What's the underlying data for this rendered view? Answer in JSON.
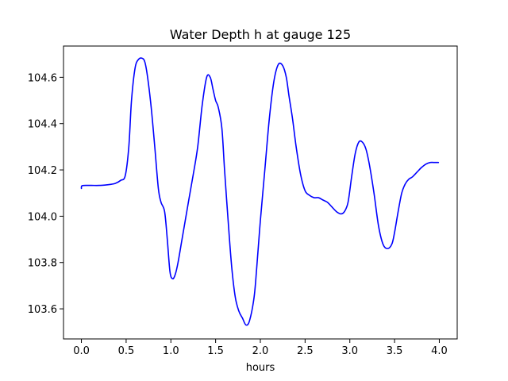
{
  "chart_data": {
    "type": "line",
    "title": "Water Depth h at gauge 125",
    "xlabel": "hours",
    "ylabel": "",
    "xlim": [
      -0.2,
      4.2
    ],
    "ylim": [
      103.47,
      104.735
    ],
    "grid": false,
    "legend": "none",
    "x_ticks": [
      0.0,
      0.5,
      1.0,
      1.5,
      2.0,
      2.5,
      3.0,
      3.5,
      4.0
    ],
    "x_tick_labels": [
      "0.0",
      "0.5",
      "1.0",
      "1.5",
      "2.0",
      "2.5",
      "3.0",
      "3.5",
      "4.0"
    ],
    "y_ticks": [
      103.6,
      103.8,
      104.0,
      104.2,
      104.4,
      104.6
    ],
    "y_tick_labels": [
      "103.6",
      "103.8",
      "104.0",
      "104.2",
      "104.4",
      "104.6"
    ],
    "series": [
      {
        "name": "",
        "color": "#0000ff",
        "x": [
          0.0,
          0.01,
          0.1,
          0.2,
          0.3,
          0.38,
          0.44,
          0.49,
          0.53,
          0.56,
          0.6,
          0.64,
          0.68,
          0.71,
          0.74,
          0.78,
          0.82,
          0.86,
          0.89,
          0.93,
          0.96,
          0.99,
          1.02,
          1.05,
          1.08,
          1.12,
          1.16,
          1.2,
          1.25,
          1.3,
          1.35,
          1.4,
          1.44,
          1.47,
          1.5,
          1.53,
          1.57,
          1.6,
          1.64,
          1.68,
          1.72,
          1.76,
          1.8,
          1.84,
          1.88,
          1.93,
          1.96,
          2.0,
          2.05,
          2.1,
          2.15,
          2.2,
          2.25,
          2.29,
          2.32,
          2.36,
          2.4,
          2.45,
          2.5,
          2.55,
          2.6,
          2.65,
          2.7,
          2.75,
          2.8,
          2.85,
          2.9,
          2.94,
          2.98,
          3.02,
          3.06,
          3.1,
          3.14,
          3.18,
          3.22,
          3.27,
          3.32,
          3.37,
          3.42,
          3.47,
          3.5,
          3.54,
          3.58,
          3.62,
          3.66,
          3.7,
          3.75,
          3.8,
          3.85,
          3.9,
          3.95,
          3.99
        ],
        "values": [
          104.12,
          104.132,
          104.133,
          104.133,
          104.136,
          104.142,
          104.155,
          104.175,
          104.3,
          104.5,
          104.64,
          104.678,
          104.682,
          104.665,
          104.6,
          104.47,
          104.3,
          104.12,
          104.06,
          104.02,
          103.9,
          103.76,
          103.73,
          103.75,
          103.8,
          103.89,
          103.98,
          104.07,
          104.18,
          104.3,
          104.48,
          104.6,
          104.6,
          104.55,
          104.5,
          104.47,
          104.38,
          104.2,
          103.98,
          103.78,
          103.65,
          103.59,
          103.56,
          103.53,
          103.55,
          103.65,
          103.78,
          103.98,
          104.2,
          104.42,
          104.58,
          104.655,
          104.65,
          104.6,
          104.52,
          104.42,
          104.3,
          104.18,
          104.11,
          104.09,
          104.08,
          104.08,
          104.07,
          104.06,
          104.04,
          104.02,
          104.01,
          104.02,
          104.06,
          104.17,
          104.27,
          104.32,
          104.32,
          104.29,
          104.22,
          104.1,
          103.96,
          103.88,
          103.86,
          103.88,
          103.93,
          104.02,
          104.1,
          104.14,
          104.16,
          104.17,
          104.19,
          104.21,
          104.225,
          104.232,
          104.232,
          104.232
        ]
      }
    ]
  }
}
